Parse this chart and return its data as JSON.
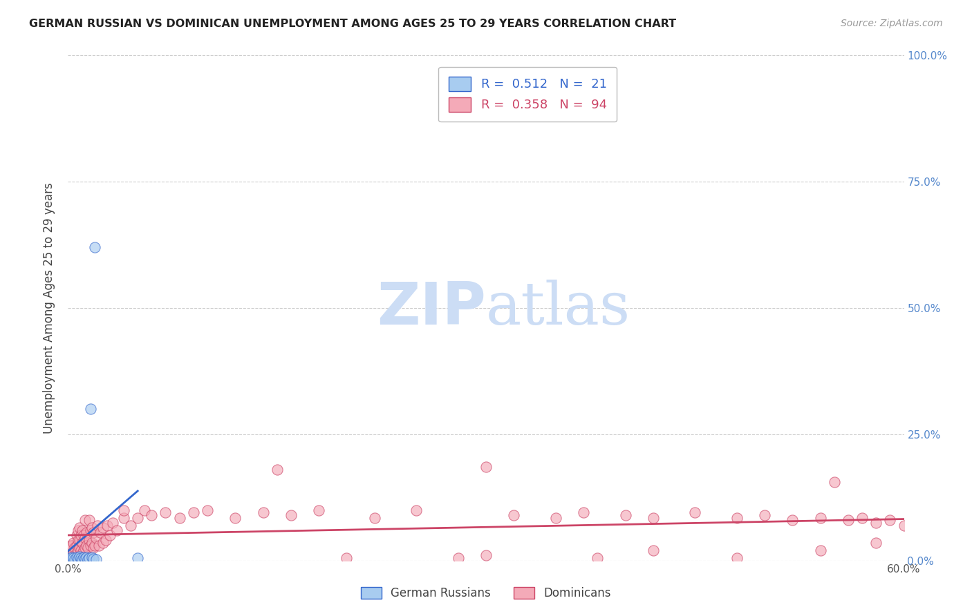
{
  "title": "GERMAN RUSSIAN VS DOMINICAN UNEMPLOYMENT AMONG AGES 25 TO 29 YEARS CORRELATION CHART",
  "source": "Source: ZipAtlas.com",
  "ylabel": "Unemployment Among Ages 25 to 29 years",
  "xlim": [
    0.0,
    0.6
  ],
  "ylim": [
    0.0,
    1.0
  ],
  "xticks": [
    0.0,
    0.1,
    0.2,
    0.3,
    0.4,
    0.5,
    0.6
  ],
  "xticklabels": [
    "0.0%",
    "",
    "",
    "",
    "",
    "",
    "60.0%"
  ],
  "yticks_right": [
    0.0,
    0.25,
    0.5,
    0.75,
    1.0
  ],
  "yticklabels_right": [
    "0.0%",
    "25.0%",
    "50.0%",
    "75.0%",
    "100.0%"
  ],
  "blue_R": 0.512,
  "blue_N": 21,
  "pink_R": 0.358,
  "pink_N": 94,
  "blue_color": "#a8ccf0",
  "pink_color": "#f4aab8",
  "blue_line_color": "#3366cc",
  "pink_line_color": "#cc4466",
  "watermark_zip": "ZIP",
  "watermark_atlas": "atlas",
  "watermark_color": "#ccddf5",
  "blue_scatter_x": [
    0.001,
    0.002,
    0.003,
    0.004,
    0.005,
    0.006,
    0.007,
    0.008,
    0.009,
    0.01,
    0.011,
    0.012,
    0.013,
    0.014,
    0.015,
    0.016,
    0.017,
    0.018,
    0.019,
    0.02,
    0.05
  ],
  "blue_scatter_y": [
    0.005,
    0.003,
    0.007,
    0.005,
    0.003,
    0.006,
    0.004,
    0.008,
    0.005,
    0.003,
    0.006,
    0.004,
    0.007,
    0.003,
    0.005,
    0.3,
    0.006,
    0.004,
    0.62,
    0.003,
    0.005
  ],
  "pink_scatter_x": [
    0.001,
    0.002,
    0.003,
    0.003,
    0.004,
    0.004,
    0.005,
    0.005,
    0.006,
    0.006,
    0.006,
    0.007,
    0.007,
    0.007,
    0.008,
    0.008,
    0.008,
    0.009,
    0.009,
    0.01,
    0.01,
    0.01,
    0.011,
    0.011,
    0.012,
    0.012,
    0.012,
    0.013,
    0.013,
    0.014,
    0.015,
    0.015,
    0.016,
    0.016,
    0.017,
    0.017,
    0.018,
    0.018,
    0.019,
    0.02,
    0.021,
    0.022,
    0.023,
    0.025,
    0.025,
    0.027,
    0.028,
    0.03,
    0.032,
    0.035,
    0.04,
    0.04,
    0.045,
    0.05,
    0.055,
    0.06,
    0.07,
    0.08,
    0.09,
    0.1,
    0.12,
    0.14,
    0.15,
    0.16,
    0.18,
    0.2,
    0.22,
    0.25,
    0.28,
    0.3,
    0.32,
    0.35,
    0.37,
    0.4,
    0.42,
    0.45,
    0.48,
    0.5,
    0.52,
    0.54,
    0.55,
    0.56,
    0.57,
    0.58,
    0.59,
    0.6,
    0.61,
    0.62,
    0.58,
    0.54,
    0.48,
    0.42,
    0.38,
    0.3
  ],
  "pink_scatter_y": [
    0.005,
    0.03,
    0.01,
    0.03,
    0.015,
    0.035,
    0.01,
    0.025,
    0.015,
    0.03,
    0.05,
    0.02,
    0.04,
    0.06,
    0.025,
    0.04,
    0.065,
    0.02,
    0.05,
    0.015,
    0.035,
    0.06,
    0.02,
    0.05,
    0.025,
    0.045,
    0.08,
    0.03,
    0.055,
    0.025,
    0.04,
    0.08,
    0.03,
    0.06,
    0.035,
    0.065,
    0.025,
    0.055,
    0.03,
    0.045,
    0.07,
    0.03,
    0.055,
    0.035,
    0.065,
    0.04,
    0.07,
    0.05,
    0.075,
    0.06,
    0.085,
    0.1,
    0.07,
    0.085,
    0.1,
    0.09,
    0.095,
    0.085,
    0.095,
    0.1,
    0.085,
    0.095,
    0.18,
    0.09,
    0.1,
    0.005,
    0.085,
    0.1,
    0.005,
    0.185,
    0.09,
    0.085,
    0.095,
    0.09,
    0.085,
    0.095,
    0.085,
    0.09,
    0.08,
    0.085,
    0.155,
    0.08,
    0.085,
    0.075,
    0.08,
    0.07,
    0.075,
    0.065,
    0.035,
    0.02,
    0.005,
    0.02,
    0.005,
    0.01
  ]
}
